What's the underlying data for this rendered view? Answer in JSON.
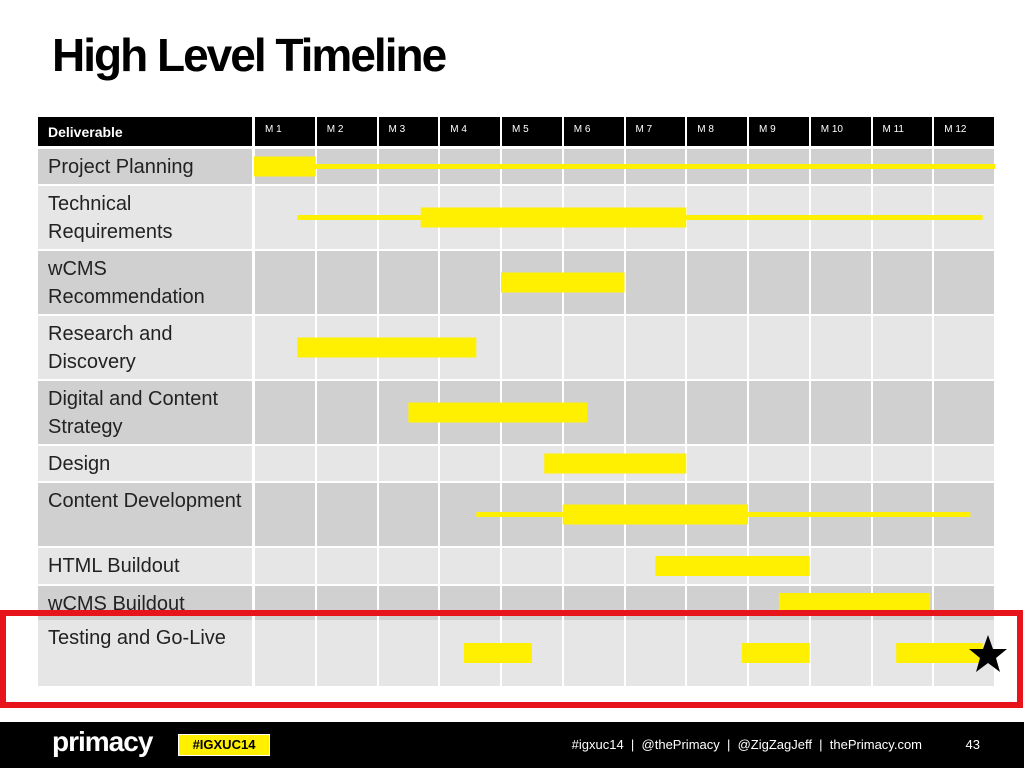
{
  "header": {
    "title": "High Level Timeline"
  },
  "table": {
    "columns": [
      "Deliverable",
      "M 1",
      "M 2",
      "M 3",
      "M 4",
      "M 5",
      "M 6",
      "M 7",
      "M 8",
      "M 9",
      "M 10",
      "M 11",
      "M 12"
    ],
    "rows": [
      {
        "label": "Project Planning",
        "spans": [
          {
            "start": 0,
            "end": 12,
            "style": "thin"
          },
          {
            "start": 0,
            "end": 1,
            "style": "thick"
          }
        ]
      },
      {
        "label": "Technical Requirements",
        "spans": [
          {
            "start": 0.7,
            "end": 11.8,
            "style": "thin"
          },
          {
            "start": 2.7,
            "end": 7,
            "style": "thick"
          }
        ]
      },
      {
        "label": "wCMS Recommendation",
        "spans": [
          {
            "start": 4,
            "end": 6,
            "style": "thick"
          }
        ]
      },
      {
        "label": "Research and Discovery",
        "spans": [
          {
            "start": 0.7,
            "end": 3.6,
            "style": "thick"
          }
        ]
      },
      {
        "label": "Digital and Content Strategy",
        "spans": [
          {
            "start": 2.5,
            "end": 5.4,
            "style": "thick"
          }
        ]
      },
      {
        "label": "Design",
        "spans": [
          {
            "start": 4.7,
            "end": 7,
            "style": "thick"
          }
        ]
      },
      {
        "label": "Content Development",
        "spans": [
          {
            "start": 3.6,
            "end": 11.6,
            "style": "thin"
          },
          {
            "start": 5,
            "end": 8,
            "style": "thick"
          }
        ]
      },
      {
        "label": "HTML Buildout",
        "spans": [
          {
            "start": 6.5,
            "end": 9,
            "style": "thick"
          }
        ]
      },
      {
        "label": "wCMS Buildout",
        "spans": [
          {
            "start": 8.5,
            "end": 10.95,
            "style": "thick"
          }
        ]
      },
      {
        "label": "Testing and Go-Live",
        "spans": [
          {
            "start": 3.4,
            "end": 4.5,
            "style": "thick"
          },
          {
            "start": 7.9,
            "end": 9,
            "style": "thick"
          },
          {
            "start": 10.4,
            "end": 11.8,
            "style": "thick"
          }
        ]
      }
    ]
  },
  "footer": {
    "logo": "primacy",
    "hashtag": "#IGXUC14",
    "links": "#igxuc14  |  @thePrimacy  |  @ZigZagJeff  |  thePrimacy.com",
    "page": 43
  }
}
